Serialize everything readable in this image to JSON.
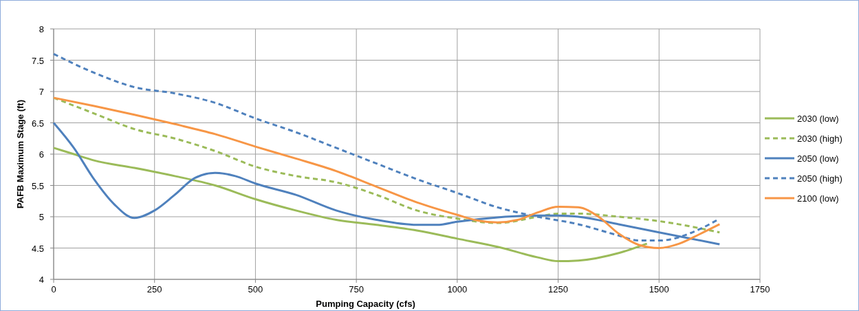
{
  "chart_data": {
    "type": "line",
    "xlabel": "Pumping Capacity  (cfs)",
    "ylabel": "PAFB Maximum Stage (ft)",
    "xlim": [
      0,
      1750
    ],
    "xticks": [
      0,
      250,
      500,
      750,
      1000,
      1250,
      1500,
      1750
    ],
    "ylim": [
      4,
      8
    ],
    "yticks": [
      4,
      4.5,
      5,
      5.5,
      6,
      6.5,
      7,
      7.5,
      8
    ],
    "grid": true,
    "legend": "right",
    "series": [
      {
        "name": "2030 (low)",
        "color": "#9bbb59",
        "line_style": "solid",
        "x": [
          0,
          50,
          100,
          200,
          300,
          400,
          500,
          600,
          700,
          800,
          900,
          1000,
          1100,
          1200,
          1250,
          1300,
          1400,
          1470
        ],
        "values": [
          6.1,
          6.0,
          5.9,
          5.78,
          5.65,
          5.5,
          5.28,
          5.1,
          4.95,
          4.87,
          4.78,
          4.65,
          4.52,
          4.35,
          4.29,
          4.3,
          4.42,
          4.57
        ]
      },
      {
        "name": "2030 (high)",
        "color": "#9bbb59",
        "line_style": "dashed",
        "x": [
          0,
          100,
          200,
          300,
          400,
          500,
          600,
          700,
          800,
          900,
          1000,
          1100,
          1200,
          1250,
          1300,
          1400,
          1500,
          1650
        ],
        "values": [
          6.9,
          6.65,
          6.4,
          6.25,
          6.05,
          5.8,
          5.65,
          5.55,
          5.35,
          5.1,
          4.97,
          4.9,
          5.0,
          5.05,
          5.05,
          5.0,
          4.93,
          4.75
        ]
      },
      {
        "name": "2050 (low)",
        "color": "#4f81bd",
        "line_style": "solid",
        "x": [
          0,
          50,
          100,
          150,
          200,
          250,
          300,
          350,
          400,
          450,
          500,
          600,
          700,
          800,
          900,
          950,
          1000,
          1100,
          1200,
          1250,
          1300,
          1400,
          1500,
          1650
        ],
        "values": [
          6.5,
          6.1,
          5.6,
          5.2,
          4.98,
          5.1,
          5.35,
          5.62,
          5.7,
          5.65,
          5.53,
          5.35,
          5.1,
          4.95,
          4.87,
          4.87,
          4.92,
          4.99,
          5.02,
          5.02,
          5.0,
          4.88,
          4.75,
          4.56
        ]
      },
      {
        "name": "2050 (high)",
        "color": "#4f81bd",
        "line_style": "dashed",
        "x": [
          0,
          100,
          200,
          300,
          400,
          500,
          600,
          700,
          800,
          900,
          1000,
          1100,
          1200,
          1300,
          1400,
          1450,
          1500,
          1600,
          1650
        ],
        "values": [
          7.6,
          7.3,
          7.07,
          6.97,
          6.82,
          6.57,
          6.35,
          6.1,
          5.85,
          5.6,
          5.38,
          5.15,
          5.0,
          4.88,
          4.7,
          4.62,
          4.62,
          4.8,
          4.97
        ]
      },
      {
        "name": "2100 (low)",
        "color": "#f79646",
        "line_style": "solid",
        "x": [
          0,
          100,
          200,
          300,
          400,
          500,
          600,
          700,
          800,
          900,
          1000,
          1050,
          1100,
          1150,
          1200,
          1250,
          1300,
          1350,
          1400,
          1450,
          1500,
          1550,
          1600,
          1650
        ],
        "values": [
          6.9,
          6.77,
          6.63,
          6.48,
          6.32,
          6.12,
          5.93,
          5.73,
          5.48,
          5.23,
          5.03,
          4.94,
          4.91,
          4.95,
          5.07,
          5.16,
          5.15,
          5.0,
          4.73,
          4.55,
          4.5,
          4.57,
          4.72,
          4.88
        ]
      }
    ]
  }
}
